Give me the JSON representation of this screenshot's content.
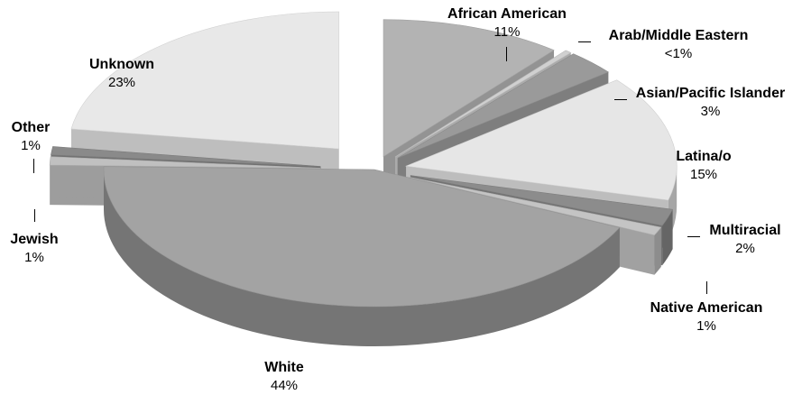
{
  "chart_data": {
    "type": "pie",
    "title": "",
    "style": "3d-exploded",
    "slices": [
      {
        "label": "African American",
        "display": "11%",
        "value": 11,
        "color": "#b3b3b3"
      },
      {
        "label": "Arab/Middle Eastern",
        "display": "<1%",
        "value": 0.4,
        "color": "#d0d0d0"
      },
      {
        "label": "Asian/Pacific Islander",
        "display": "3%",
        "value": 3,
        "color": "#9a9a9a"
      },
      {
        "label": "Latina/o",
        "display": "15%",
        "value": 15,
        "color": "#e6e6e6"
      },
      {
        "label": "Multiracial",
        "display": "2%",
        "value": 2,
        "color": "#8c8c8c"
      },
      {
        "label": "Native American",
        "display": "1%",
        "value": 1,
        "color": "#c4c4c4"
      },
      {
        "label": "White",
        "display": "44%",
        "value": 44,
        "color": "#a3a3a3"
      },
      {
        "label": "Jewish",
        "display": "1%",
        "value": 1,
        "color": "#c0c0c0"
      },
      {
        "label": "Other",
        "display": "1%",
        "value": 1,
        "color": "#8a8a8a"
      },
      {
        "label": "Unknown",
        "display": "23%",
        "value": 23,
        "color": "#e8e8e8"
      }
    ]
  }
}
